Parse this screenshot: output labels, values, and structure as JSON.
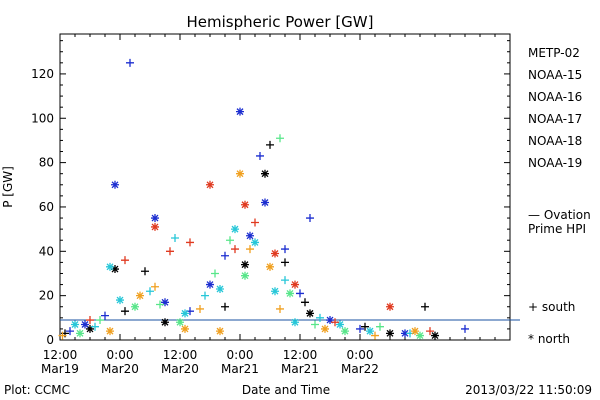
{
  "chart_data": {
    "type": "scatter",
    "title": "Hemispheric Power [GW]",
    "ylabel": "P [GW]",
    "xlabel": "Date and Time",
    "ylim": [
      0,
      138
    ],
    "xlim": [
      "2013-03-19 12:00",
      "2013-03-23 06:00"
    ],
    "y_ticks": [
      0,
      20,
      40,
      60,
      80,
      100,
      120
    ],
    "x_ticks": [
      {
        "time": "2013-03-19 12:00",
        "label1": "12:00",
        "label2": "Mar19"
      },
      {
        "time": "2013-03-20 00:00",
        "label1": "0:00",
        "label2": "Mar20"
      },
      {
        "time": "2013-03-20 12:00",
        "label1": "12:00",
        "label2": "Mar20"
      },
      {
        "time": "2013-03-21 00:00",
        "label1": "0:00",
        "label2": "Mar21"
      },
      {
        "time": "2013-03-21 12:00",
        "label1": "12:00",
        "label2": "Mar21"
      },
      {
        "time": "2013-03-22 00:00",
        "label1": "0:00",
        "label2": "Mar22"
      }
    ],
    "legend_position": "right",
    "marker_legend": {
      "plus": "+ south",
      "star": "* north"
    },
    "series": [
      {
        "name": "METP-02",
        "color": "#000000",
        "points": [
          {
            "x": "2013-03-19 13:00",
            "y": 3,
            "m": "+"
          },
          {
            "x": "2013-03-19 18:00",
            "y": 5,
            "m": "*"
          },
          {
            "x": "2013-03-19 23:00",
            "y": 32,
            "m": "*"
          },
          {
            "x": "2013-03-20 01:00",
            "y": 13,
            "m": "+"
          },
          {
            "x": "2013-03-20 05:00",
            "y": 31,
            "m": "+"
          },
          {
            "x": "2013-03-20 09:00",
            "y": 8,
            "m": "*"
          },
          {
            "x": "2013-03-20 21:00",
            "y": 15,
            "m": "+"
          },
          {
            "x": "2013-03-21 01:00",
            "y": 34,
            "m": "*"
          },
          {
            "x": "2013-03-21 05:00",
            "y": 75,
            "m": "*"
          },
          {
            "x": "2013-03-21 06:00",
            "y": 88,
            "m": "+"
          },
          {
            "x": "2013-03-21 09:00",
            "y": 35,
            "m": "+"
          },
          {
            "x": "2013-03-21 13:00",
            "y": 17,
            "m": "+"
          },
          {
            "x": "2013-03-21 14:00",
            "y": 12,
            "m": "*"
          },
          {
            "x": "2013-03-22 01:00",
            "y": 6,
            "m": "+"
          },
          {
            "x": "2013-03-22 06:00",
            "y": 3,
            "m": "*"
          },
          {
            "x": "2013-03-22 13:00",
            "y": 15,
            "m": "+"
          },
          {
            "x": "2013-03-22 15:00",
            "y": 2,
            "m": "*"
          }
        ]
      },
      {
        "name": "NOAA-15",
        "color": "#1c2ed0",
        "points": [
          {
            "x": "2013-03-19 14:00",
            "y": 4,
            "m": "+"
          },
          {
            "x": "2013-03-19 17:00",
            "y": 7,
            "m": "*"
          },
          {
            "x": "2013-03-19 21:00",
            "y": 11,
            "m": "+"
          },
          {
            "x": "2013-03-19 23:00",
            "y": 70,
            "m": "*"
          },
          {
            "x": "2013-03-20 02:00",
            "y": 125,
            "m": "+"
          },
          {
            "x": "2013-03-20 07:00",
            "y": 55,
            "m": "*"
          },
          {
            "x": "2013-03-20 09:00",
            "y": 17,
            "m": "*"
          },
          {
            "x": "2013-03-20 14:00",
            "y": 13,
            "m": "+"
          },
          {
            "x": "2013-03-20 18:00",
            "y": 25,
            "m": "*"
          },
          {
            "x": "2013-03-20 21:00",
            "y": 38,
            "m": "+"
          },
          {
            "x": "2013-03-21 00:00",
            "y": 103,
            "m": "*"
          },
          {
            "x": "2013-03-21 02:00",
            "y": 47,
            "m": "*"
          },
          {
            "x": "2013-03-21 04:00",
            "y": 83,
            "m": "+"
          },
          {
            "x": "2013-03-21 05:00",
            "y": 62,
            "m": "*"
          },
          {
            "x": "2013-03-21 09:00",
            "y": 41,
            "m": "+"
          },
          {
            "x": "2013-03-21 12:00",
            "y": 21,
            "m": "+"
          },
          {
            "x": "2013-03-21 14:00",
            "y": 55,
            "m": "+"
          },
          {
            "x": "2013-03-21 18:00",
            "y": 9,
            "m": "*"
          },
          {
            "x": "2013-03-22 00:00",
            "y": 5,
            "m": "+"
          },
          {
            "x": "2013-03-22 09:00",
            "y": 3,
            "m": "*"
          },
          {
            "x": "2013-03-22 21:00",
            "y": 5,
            "m": "+"
          }
        ]
      },
      {
        "name": "NOAA-16",
        "color": "#27c7d8",
        "points": [
          {
            "x": "2013-03-19 15:00",
            "y": 7,
            "m": "*"
          },
          {
            "x": "2013-03-19 19:00",
            "y": 6,
            "m": "+"
          },
          {
            "x": "2013-03-19 22:00",
            "y": 33,
            "m": "*"
          },
          {
            "x": "2013-03-20 00:00",
            "y": 18,
            "m": "*"
          },
          {
            "x": "2013-03-20 06:00",
            "y": 22,
            "m": "+"
          },
          {
            "x": "2013-03-20 11:00",
            "y": 46,
            "m": "+"
          },
          {
            "x": "2013-03-20 13:00",
            "y": 12,
            "m": "*"
          },
          {
            "x": "2013-03-20 17:00",
            "y": 20,
            "m": "+"
          },
          {
            "x": "2013-03-20 20:00",
            "y": 23,
            "m": "*"
          },
          {
            "x": "2013-03-20 23:00",
            "y": 50,
            "m": "*"
          },
          {
            "x": "2013-03-21 03:00",
            "y": 44,
            "m": "*"
          },
          {
            "x": "2013-03-21 07:00",
            "y": 22,
            "m": "*"
          },
          {
            "x": "2013-03-21 09:00",
            "y": 27,
            "m": "+"
          },
          {
            "x": "2013-03-21 11:00",
            "y": 8,
            "m": "*"
          },
          {
            "x": "2013-03-21 16:00",
            "y": 10,
            "m": "+"
          },
          {
            "x": "2013-03-21 20:00",
            "y": 7,
            "m": "*"
          },
          {
            "x": "2013-03-22 02:00",
            "y": 4,
            "m": "*"
          },
          {
            "x": "2013-03-22 10:00",
            "y": 3,
            "m": "+"
          }
        ]
      },
      {
        "name": "NOAA-17",
        "color": "#58e68a",
        "points": [
          {
            "x": "2013-03-19 16:00",
            "y": 3,
            "m": "*"
          },
          {
            "x": "2013-03-19 20:00",
            "y": 9,
            "m": "+"
          },
          {
            "x": "2013-03-20 03:00",
            "y": 15,
            "m": "*"
          },
          {
            "x": "2013-03-20 08:00",
            "y": 16,
            "m": "+"
          },
          {
            "x": "2013-03-20 12:00",
            "y": 8,
            "m": "*"
          },
          {
            "x": "2013-03-20 19:00",
            "y": 30,
            "m": "+"
          },
          {
            "x": "2013-03-20 22:00",
            "y": 45,
            "m": "+"
          },
          {
            "x": "2013-03-21 01:00",
            "y": 29,
            "m": "*"
          },
          {
            "x": "2013-03-21 08:00",
            "y": 91,
            "m": "+"
          },
          {
            "x": "2013-03-21 10:00",
            "y": 21,
            "m": "*"
          },
          {
            "x": "2013-03-21 15:00",
            "y": 7,
            "m": "+"
          },
          {
            "x": "2013-03-21 21:00",
            "y": 4,
            "m": "*"
          },
          {
            "x": "2013-03-22 04:00",
            "y": 6,
            "m": "+"
          },
          {
            "x": "2013-03-22 12:00",
            "y": 2,
            "m": "*"
          }
        ]
      },
      {
        "name": "NOAA-18",
        "color": "#f0a020",
        "points": [
          {
            "x": "2013-03-19 12:30",
            "y": 2,
            "m": "+"
          },
          {
            "x": "2013-03-19 22:00",
            "y": 4,
            "m": "*"
          },
          {
            "x": "2013-03-20 04:00",
            "y": 20,
            "m": "*"
          },
          {
            "x": "2013-03-20 07:00",
            "y": 24,
            "m": "+"
          },
          {
            "x": "2013-03-20 13:00",
            "y": 5,
            "m": "*"
          },
          {
            "x": "2013-03-20 16:00",
            "y": 14,
            "m": "+"
          },
          {
            "x": "2013-03-20 20:00",
            "y": 4,
            "m": "*"
          },
          {
            "x": "2013-03-21 00:00",
            "y": 75,
            "m": "*"
          },
          {
            "x": "2013-03-21 02:00",
            "y": 41,
            "m": "+"
          },
          {
            "x": "2013-03-21 06:00",
            "y": 33,
            "m": "*"
          },
          {
            "x": "2013-03-21 08:00",
            "y": 14,
            "m": "+"
          },
          {
            "x": "2013-03-21 17:00",
            "y": 5,
            "m": "*"
          },
          {
            "x": "2013-03-22 03:00",
            "y": 2,
            "m": "+"
          },
          {
            "x": "2013-03-22 11:00",
            "y": 4,
            "m": "*"
          }
        ]
      },
      {
        "name": "NOAA-19",
        "color": "#e03a20",
        "points": [
          {
            "x": "2013-03-19 18:00",
            "y": 9,
            "m": "+"
          },
          {
            "x": "2013-03-20 01:00",
            "y": 36,
            "m": "+"
          },
          {
            "x": "2013-03-20 07:00",
            "y": 51,
            "m": "*"
          },
          {
            "x": "2013-03-20 10:00",
            "y": 40,
            "m": "+"
          },
          {
            "x": "2013-03-20 14:00",
            "y": 44,
            "m": "+"
          },
          {
            "x": "2013-03-20 18:00",
            "y": 70,
            "m": "*"
          },
          {
            "x": "2013-03-20 23:00",
            "y": 41,
            "m": "+"
          },
          {
            "x": "2013-03-21 01:00",
            "y": 61,
            "m": "*"
          },
          {
            "x": "2013-03-21 03:00",
            "y": 53,
            "m": "+"
          },
          {
            "x": "2013-03-21 07:00",
            "y": 39,
            "m": "*"
          },
          {
            "x": "2013-03-21 11:00",
            "y": 25,
            "m": "*"
          },
          {
            "x": "2013-03-21 19:00",
            "y": 8,
            "m": "+"
          },
          {
            "x": "2013-03-22 06:00",
            "y": 15,
            "m": "*"
          },
          {
            "x": "2013-03-22 14:00",
            "y": 4,
            "m": "+"
          }
        ]
      },
      {
        "name": "Ovation Prime HPI",
        "color": "#2a70d8",
        "style": "dotted-step",
        "points": [
          {
            "x": "2013-03-19 12:00",
            "y": 9
          },
          {
            "x": "2013-03-19 16:00",
            "y": 20
          },
          {
            "x": "2013-03-19 18:00",
            "y": 9
          },
          {
            "x": "2013-03-19 20:00",
            "y": 15
          },
          {
            "x": "2013-03-19 22:00",
            "y": 10
          },
          {
            "x": "2013-03-20 00:00",
            "y": 30
          },
          {
            "x": "2013-03-20 02:00",
            "y": 21
          },
          {
            "x": "2013-03-20 04:00",
            "y": 38
          },
          {
            "x": "2013-03-20 06:00",
            "y": 28
          },
          {
            "x": "2013-03-20 08:00",
            "y": 33
          },
          {
            "x": "2013-03-20 10:00",
            "y": 15
          },
          {
            "x": "2013-03-20 12:00",
            "y": 45
          },
          {
            "x": "2013-03-20 14:00",
            "y": 20
          },
          {
            "x": "2013-03-20 16:00",
            "y": 28
          },
          {
            "x": "2013-03-20 18:00",
            "y": 34
          },
          {
            "x": "2013-03-20 20:00",
            "y": 28
          },
          {
            "x": "2013-03-20 22:00",
            "y": 50
          },
          {
            "x": "2013-03-21 00:00",
            "y": 70
          },
          {
            "x": "2013-03-21 02:00",
            "y": 58
          },
          {
            "x": "2013-03-21 04:00",
            "y": 45
          },
          {
            "x": "2013-03-21 06:00",
            "y": 35
          },
          {
            "x": "2013-03-21 08:00",
            "y": 43
          },
          {
            "x": "2013-03-21 10:00",
            "y": 30
          },
          {
            "x": "2013-03-21 12:00",
            "y": 19
          },
          {
            "x": "2013-03-21 14:00",
            "y": 12
          },
          {
            "x": "2013-03-21 16:00",
            "y": 8
          },
          {
            "x": "2013-03-21 18:00",
            "y": 12
          },
          {
            "x": "2013-03-21 20:00",
            "y": 8
          },
          {
            "x": "2013-03-21 22:00",
            "y": 10
          },
          {
            "x": "2013-03-22 00:00",
            "y": 7
          },
          {
            "x": "2013-03-22 02:00",
            "y": 5
          },
          {
            "x": "2013-03-22 04:00",
            "y": 9
          },
          {
            "x": "2013-03-22 06:00",
            "y": 4
          },
          {
            "x": "2013-03-22 08:00",
            "y": 6
          },
          {
            "x": "2013-03-22 10:00",
            "y": 3
          },
          {
            "x": "2013-03-22 12:00",
            "y": 3
          },
          {
            "x": "2013-03-22 14:00",
            "y": 20
          },
          {
            "x": "2013-03-22 16:00",
            "y": 5
          },
          {
            "x": "2013-03-22 18:00",
            "y": 27
          },
          {
            "x": "2013-03-22 20:00",
            "y": 12
          },
          {
            "x": "2013-03-22 22:00",
            "y": 18
          },
          {
            "x": "2013-03-23 00:00",
            "y": 8
          }
        ]
      }
    ],
    "reference_line": {
      "y": 9,
      "color": "#1a50a0"
    }
  },
  "legend_labels": {
    "s0": "METP-02",
    "s1": "NOAA-15",
    "s2": "NOAA-16",
    "s3": "NOAA-17",
    "s4": "NOAA-18",
    "s5": "NOAA-19",
    "ovation_line1": "— Ovation",
    "ovation_line2": "Prime HPI"
  },
  "footer": {
    "plot_label": "Plot: CCMC",
    "timestamp": "2013/03/22 11:50:09"
  }
}
